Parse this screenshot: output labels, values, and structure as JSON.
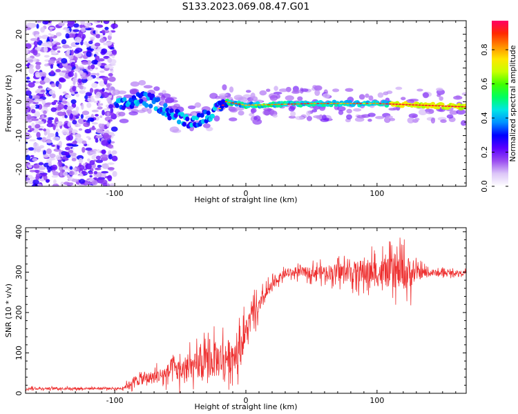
{
  "chart_data": [
    {
      "type": "heatmap",
      "title": "S133.2023.069.08.47.G01",
      "xlabel": "Height of straight line (km)",
      "ylabel": "Frequency (Hz)",
      "xlim": [
        -168,
        168
      ],
      "ylim": [
        -25,
        24
      ],
      "xticks": [
        -100,
        0,
        100
      ],
      "yticks": [
        -20,
        -10,
        0,
        10,
        20
      ],
      "colorbar": {
        "label": "Normalized spectral amplitude",
        "range": [
          0,
          0.97
        ],
        "ticks": [
          "0.0",
          "0.2",
          "0.4",
          "0.6",
          "0.8"
        ],
        "colors": [
          "#ffffff",
          "#dcc6f8",
          "#9a4cf0",
          "#5a00ff",
          "#0000ff",
          "#0090ff",
          "#00e6e6",
          "#00ff60",
          "#40ff00",
          "#c8ff00",
          "#ffe600",
          "#ff8c00",
          "#ff2a00",
          "#ff0066"
        ]
      },
      "features": [
        {
          "name": "broadband-noise",
          "x_range": [
            -168,
            -100
          ],
          "y_range": [
            -25,
            24
          ],
          "amplitude_range": [
            0.05,
            0.3
          ]
        },
        {
          "name": "signal-band",
          "x_range": [
            -99,
            168
          ],
          "center_freq_hz": [
            [
              -99,
              -1.5
            ],
            [
              -80,
              1
            ],
            [
              -70,
              0
            ],
            [
              -55,
              -4
            ],
            [
              -40,
              -6
            ],
            [
              -30,
              -4
            ],
            [
              -20,
              -2
            ],
            [
              -15,
              0
            ],
            [
              0,
              -1
            ],
            [
              50,
              -0.5
            ],
            [
              100,
              -0.5
            ],
            [
              168,
              -1.5
            ]
          ],
          "peak_amplitude": 0.97
        }
      ]
    },
    {
      "type": "line",
      "title": "",
      "xlabel": "Height of straight line (km)",
      "ylabel": "SNR (10 * v/v)",
      "xlim": [
        -168,
        168
      ],
      "ylim": [
        0,
        410
      ],
      "xticks": [
        -100,
        0,
        100
      ],
      "yticks": [
        0,
        100,
        200,
        300,
        400
      ],
      "series": [
        {
          "color": "#ee3030",
          "x": [
            -168,
            -140,
            -110,
            -95,
            -90,
            -85,
            -80,
            -70,
            -60,
            -55,
            -50,
            -40,
            -30,
            -20,
            -10,
            -5,
            0,
            5,
            10,
            15,
            20,
            25,
            30,
            40,
            50,
            60,
            70,
            80,
            90,
            100,
            110,
            120,
            125,
            130,
            140,
            150,
            160,
            168
          ],
          "mean": [
            12,
            12,
            12,
            12,
            20,
            30,
            35,
            40,
            50,
            60,
            55,
            65,
            75,
            85,
            95,
            110,
            150,
            195,
            210,
            245,
            265,
            285,
            295,
            300,
            300,
            300,
            300,
            300,
            300,
            298,
            298,
            298,
            298,
            298,
            298,
            298,
            298,
            298
          ],
          "spread": [
            6,
            6,
            6,
            6,
            15,
            30,
            30,
            35,
            45,
            80,
            55,
            70,
            85,
            100,
            90,
            85,
            80,
            60,
            50,
            40,
            30,
            25,
            20,
            25,
            30,
            40,
            45,
            55,
            70,
            75,
            80,
            90,
            90,
            40,
            20,
            15,
            12,
            12
          ]
        }
      ]
    }
  ]
}
